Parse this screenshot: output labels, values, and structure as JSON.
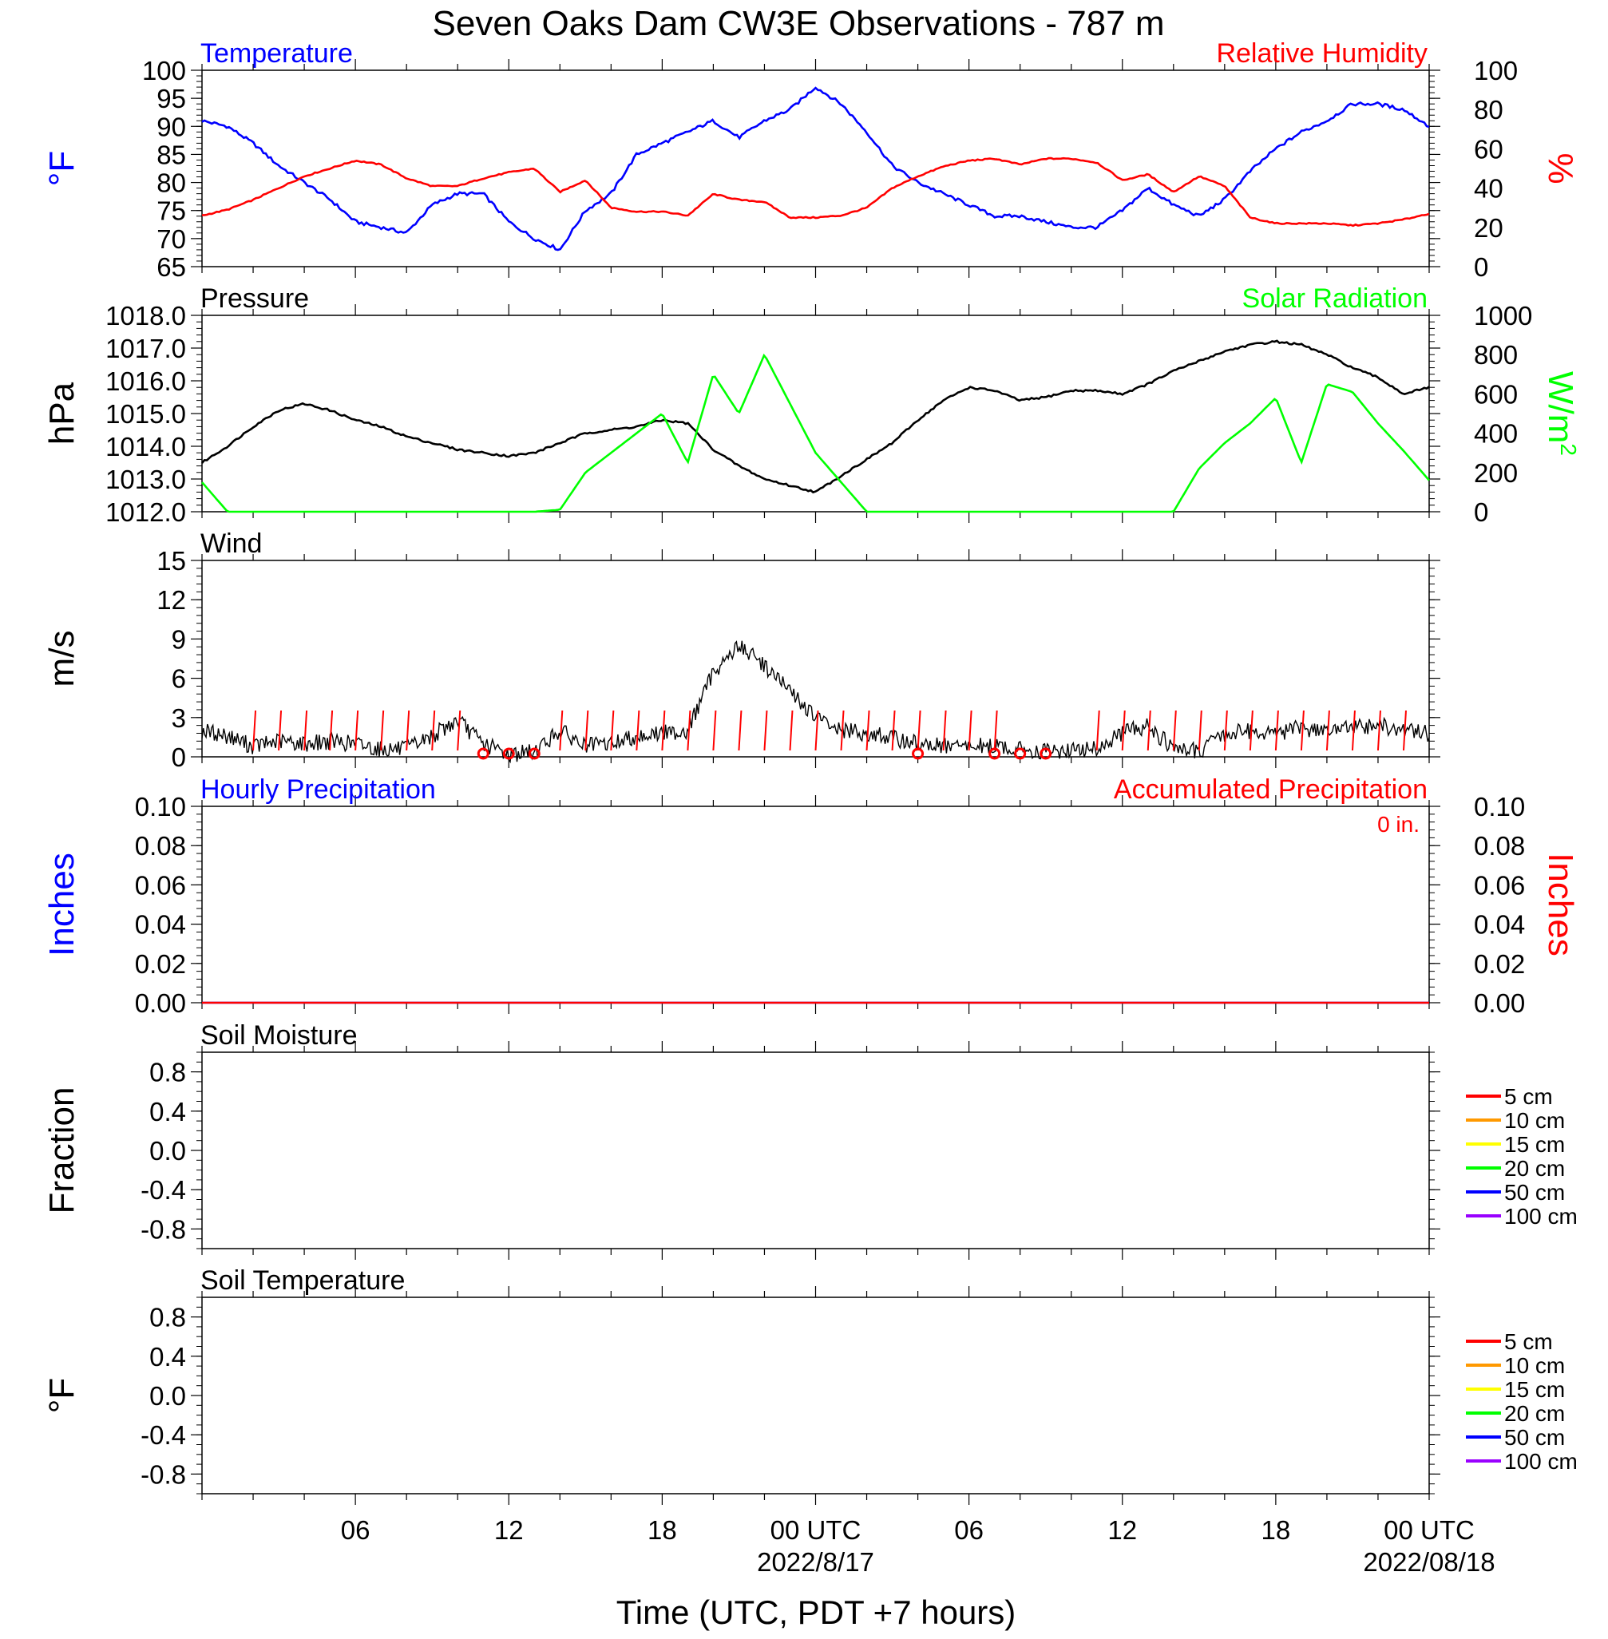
{
  "title": "Seven Oaks Dam CW3E Observations - 787 m",
  "xaxis": {
    "label": "Time (UTC, PDT +7 hours)",
    "ticks": [
      "06",
      "12",
      "18",
      "00 UTC",
      "06",
      "12",
      "18",
      "00 UTC"
    ],
    "dates": [
      "2022/8/17",
      "2022/08/18"
    ]
  },
  "colors": {
    "blue": "#0000ff",
    "red": "#ff0000",
    "green": "#00ff00",
    "black": "#000000"
  },
  "chart_data": [
    {
      "type": "line",
      "title_left": "Temperature",
      "title_right": "Relative Humidity",
      "ylabel": "°F",
      "y2label": "%",
      "ylim": [
        65,
        100
      ],
      "y2lim": [
        0,
        100
      ],
      "yticks": [
        "100",
        "95",
        "90",
        "85",
        "80",
        "75",
        "70",
        "65"
      ],
      "y2ticks": [
        "100",
        "80",
        "60",
        "40",
        "20",
        "0"
      ],
      "x_hours": [
        0,
        1,
        2,
        3,
        4,
        5,
        6,
        7,
        8,
        9,
        10,
        11,
        12,
        13,
        14,
        15,
        16,
        17,
        18,
        19,
        20,
        21,
        22,
        23,
        24,
        25,
        26,
        27,
        28,
        29,
        30,
        31,
        32,
        33,
        34,
        35,
        36,
        37,
        38,
        39,
        40,
        41,
        42,
        43,
        44,
        45,
        46,
        47,
        48
      ],
      "series": [
        {
          "name": "Temperature",
          "axis": "left",
          "color": "#0000ff",
          "values": [
            91,
            90,
            87,
            83,
            80,
            77,
            73,
            72,
            71,
            76,
            78,
            78,
            73,
            70,
            68,
            75,
            78,
            85,
            87,
            89,
            91,
            88,
            91,
            93,
            97,
            94,
            89,
            83,
            80,
            78,
            76,
            74,
            74,
            73,
            72,
            72,
            75,
            79,
            76,
            74,
            77,
            82,
            86,
            89,
            91,
            94,
            94,
            93,
            90
          ]
        },
        {
          "name": "Relative Humidity",
          "axis": "right",
          "color": "#ff0000",
          "values": [
            26,
            29,
            34,
            40,
            46,
            50,
            54,
            52,
            45,
            41,
            41,
            45,
            48,
            50,
            38,
            44,
            30,
            28,
            28,
            26,
            37,
            34,
            33,
            25,
            25,
            26,
            30,
            40,
            46,
            51,
            54,
            55,
            52,
            55,
            55,
            53,
            44,
            47,
            38,
            46,
            41,
            25,
            22,
            22,
            22,
            21,
            22,
            24,
            27
          ]
        }
      ]
    },
    {
      "type": "line",
      "title_left": "Pressure",
      "title_right": "Solar Radiation",
      "ylabel": "hPa",
      "y2label": "W/m",
      "y2label_sup": "2",
      "ylim": [
        1012,
        1018
      ],
      "y2lim": [
        0,
        1000
      ],
      "yticks": [
        "1018.0",
        "1017.0",
        "1016.0",
        "1015.0",
        "1014.0",
        "1013.0",
        "1012.0"
      ],
      "y2ticks": [
        "1000",
        "800",
        "600",
        "400",
        "200",
        "0"
      ],
      "x_hours": [
        0,
        1,
        2,
        3,
        4,
        5,
        6,
        7,
        8,
        9,
        10,
        11,
        12,
        13,
        14,
        15,
        16,
        17,
        18,
        19,
        20,
        21,
        22,
        23,
        24,
        25,
        26,
        27,
        28,
        29,
        30,
        31,
        32,
        33,
        34,
        35,
        36,
        37,
        38,
        39,
        40,
        41,
        42,
        43,
        44,
        45,
        46,
        47,
        48
      ],
      "series": [
        {
          "name": "Pressure",
          "axis": "left",
          "color": "#000000",
          "values": [
            1013.5,
            1014.0,
            1014.6,
            1015.1,
            1015.3,
            1015.1,
            1014.8,
            1014.6,
            1014.3,
            1014.1,
            1013.9,
            1013.8,
            1013.7,
            1013.8,
            1014.1,
            1014.4,
            1014.5,
            1014.6,
            1014.8,
            1014.7,
            1013.9,
            1013.4,
            1013.0,
            1012.8,
            1012.6,
            1013.1,
            1013.6,
            1014.1,
            1014.8,
            1015.4,
            1015.8,
            1015.7,
            1015.4,
            1015.5,
            1015.7,
            1015.7,
            1015.6,
            1015.9,
            1016.3,
            1016.6,
            1016.9,
            1017.1,
            1017.2,
            1017.1,
            1016.8,
            1016.4,
            1016.1,
            1015.6,
            1015.8
          ]
        },
        {
          "name": "Solar Radiation",
          "axis": "right",
          "color": "#00ff00",
          "values": [
            150,
            0,
            0,
            0,
            0,
            0,
            0,
            0,
            0,
            0,
            0,
            0,
            0,
            0,
            10,
            200,
            300,
            400,
            500,
            250,
            700,
            500,
            800,
            550,
            300,
            150,
            0,
            0,
            0,
            0,
            0,
            0,
            0,
            0,
            0,
            0,
            0,
            0,
            0,
            220,
            350,
            450,
            580,
            250,
            650,
            610,
            450,
            310,
            160
          ]
        }
      ]
    },
    {
      "type": "line",
      "title_left": "Wind",
      "ylabel": "m/s",
      "ylim": [
        0,
        15
      ],
      "yticks": [
        "15",
        "12",
        "9",
        "6",
        "3",
        "0"
      ],
      "x_hours": [
        0,
        1,
        2,
        3,
        4,
        5,
        6,
        7,
        8,
        9,
        10,
        11,
        12,
        13,
        14,
        15,
        16,
        17,
        18,
        19,
        20,
        21,
        22,
        23,
        24,
        25,
        26,
        27,
        28,
        29,
        30,
        31,
        32,
        33,
        34,
        35,
        36,
        37,
        38,
        39,
        40,
        41,
        42,
        43,
        44,
        45,
        46,
        47,
        48
      ],
      "series": [
        {
          "name": "Wind speed",
          "color": "#000000",
          "values": [
            2.0,
            1.6,
            0.8,
            1.2,
            1.0,
            1.2,
            1.0,
            0.6,
            0.6,
            1.6,
            2.8,
            1.0,
            0.2,
            0.4,
            2.0,
            0.8,
            1.0,
            1.6,
            1.8,
            2.0,
            6.5,
            8.5,
            7.0,
            5.0,
            3.0,
            2.0,
            1.8,
            1.4,
            1.0,
            0.8,
            0.8,
            0.8,
            0.6,
            0.4,
            0.5,
            0.6,
            1.8,
            2.4,
            0.6,
            0.4,
            1.8,
            2.0,
            1.8,
            2.2,
            2.0,
            2.2,
            2.4,
            2.0,
            1.8
          ]
        }
      ],
      "barb_hours": [
        2,
        3,
        4,
        5,
        6,
        7,
        8,
        9,
        10,
        14,
        15,
        16,
        17,
        18,
        19,
        20,
        21,
        22,
        23,
        24,
        25,
        26,
        27,
        28,
        29,
        30,
        31,
        35,
        36,
        37,
        38,
        39,
        40,
        41,
        42,
        43,
        44,
        45,
        46,
        47
      ],
      "calm_hours": [
        11,
        12,
        13,
        28,
        31,
        32,
        33
      ]
    },
    {
      "type": "line",
      "title_left": "Hourly Precipitation",
      "title_right": "Accumulated Precipitation",
      "annotation": "0 in.",
      "ylabel": "Inches",
      "y2label": "Inches",
      "ylim": [
        0,
        0.1
      ],
      "y2lim": [
        0,
        0.1
      ],
      "yticks": [
        "0.10",
        "0.08",
        "0.06",
        "0.04",
        "0.02",
        "0.00"
      ],
      "y2ticks": [
        "0.10",
        "0.08",
        "0.06",
        "0.04",
        "0.02",
        "0.00"
      ],
      "x_hours": [
        0,
        48
      ],
      "series": [
        {
          "name": "Hourly Precipitation",
          "axis": "left",
          "color": "#0000ff",
          "values": [
            0,
            0
          ]
        },
        {
          "name": "Accumulated Precipitation",
          "axis": "right",
          "color": "#ff0000",
          "values": [
            0,
            0
          ]
        }
      ]
    },
    {
      "type": "line",
      "title_left": "Soil Moisture",
      "ylabel": "Fraction",
      "ylim": [
        -1,
        1
      ],
      "yticks": [
        "0.8",
        "0.4",
        "0.0",
        "-0.4",
        "-0.8"
      ],
      "legend": [
        {
          "label": "5 cm",
          "color": "#ff0000"
        },
        {
          "label": "10 cm",
          "color": "#ff9900"
        },
        {
          "label": "15 cm",
          "color": "#ffff00"
        },
        {
          "label": "20 cm",
          "color": "#00ff00"
        },
        {
          "label": "50 cm",
          "color": "#0000ff"
        },
        {
          "label": "100 cm",
          "color": "#9900ff"
        }
      ],
      "series": []
    },
    {
      "type": "line",
      "title_left": "Soil Temperature",
      "ylabel": "°F",
      "ylim": [
        -1,
        1
      ],
      "yticks": [
        "0.8",
        "0.4",
        "0.0",
        "-0.4",
        "-0.8"
      ],
      "legend": [
        {
          "label": "5 cm",
          "color": "#ff0000"
        },
        {
          "label": "10 cm",
          "color": "#ff9900"
        },
        {
          "label": "15 cm",
          "color": "#ffff00"
        },
        {
          "label": "20 cm",
          "color": "#00ff00"
        },
        {
          "label": "50 cm",
          "color": "#0000ff"
        },
        {
          "label": "100 cm",
          "color": "#9900ff"
        }
      ],
      "series": []
    }
  ]
}
